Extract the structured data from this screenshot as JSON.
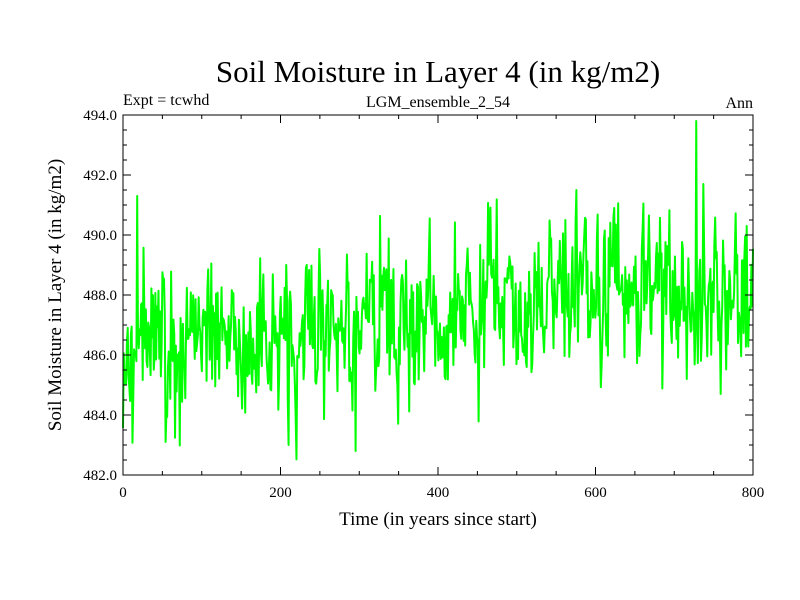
{
  "chart_data": {
    "type": "line",
    "title": "Soil Moisture in Layer 4 (in kg/m2)",
    "subtitle_left": "Expt = tcwhd",
    "subtitle_center": "LGM_ensemble_2_54",
    "subtitle_right": "Ann",
    "xlabel": "Time (in years since start)",
    "ylabel": "Soil Moisture in Layer 4 (in kg/m2)",
    "xlim": [
      0,
      800
    ],
    "ylim": [
      482.0,
      494.0
    ],
    "xticks": [
      0,
      200,
      400,
      600,
      800
    ],
    "xtick_labels": [
      "0",
      "200",
      "400",
      "600",
      "800"
    ],
    "yticks": [
      482,
      484,
      486,
      488,
      490,
      492,
      494
    ],
    "ytick_labels": [
      "482.0",
      "484.0",
      "486.0",
      "488.0",
      "490.0",
      "492.0",
      "494.0"
    ],
    "series": [
      {
        "name": "soil moisture layer 4",
        "color": "#00ff00",
        "n_points": 800,
        "x_start": 0,
        "x_end": 800,
        "trend_anchors": {
          "x": [
            0,
            100,
            200,
            300,
            400,
            500,
            600,
            700,
            800
          ],
          "y": [
            486.5,
            486.6,
            486.7,
            486.9,
            487.2,
            487.6,
            488.0,
            488.3,
            487.9
          ]
        },
        "approx_std": 1.3,
        "observed_min": 482.8,
        "observed_max": 493.8,
        "notable_points": {
          "x": [
            18,
            54,
            210,
            295,
            728,
            737
          ],
          "y": [
            491.3,
            483.1,
            483.0,
            482.8,
            493.8,
            491.7
          ]
        }
      }
    ],
    "grid": false,
    "legend": "none"
  }
}
